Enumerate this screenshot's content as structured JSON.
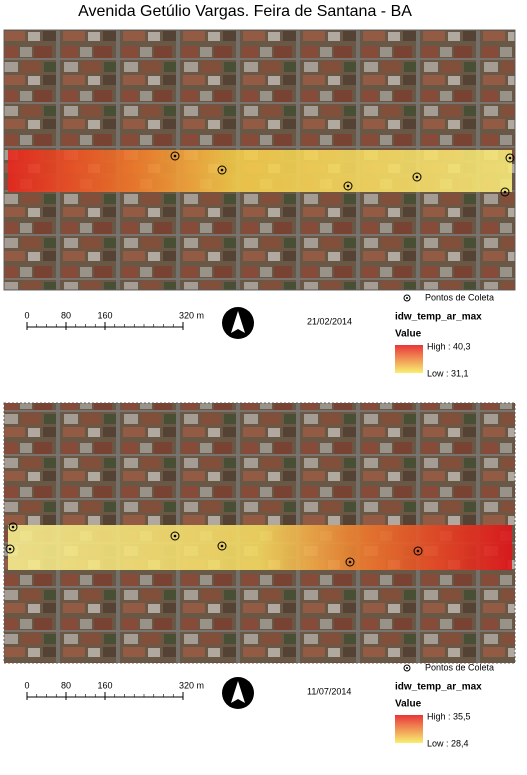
{
  "title": "Avenida Getúlio Vargas. Feira de Santana - BA",
  "panels": [
    {
      "date": "21/02/2014",
      "scale_labels": [
        "0",
        "80",
        "160",
        "320 m"
      ],
      "legend": {
        "points": "Pontos de Coleta",
        "layer": "idw_temp_ar_max",
        "field": "Value",
        "high": "High : 40,3",
        "low": "Low : 31,1"
      }
    },
    {
      "date": "11/07/2014",
      "scale_labels": [
        "0",
        "80",
        "160",
        "320 m"
      ],
      "legend": {
        "points": "Pontos de Coleta",
        "layer": "idw_temp_ar_max",
        "field": "Value",
        "high": "High : 35,5",
        "low": "Low : 28,4"
      }
    }
  ]
}
